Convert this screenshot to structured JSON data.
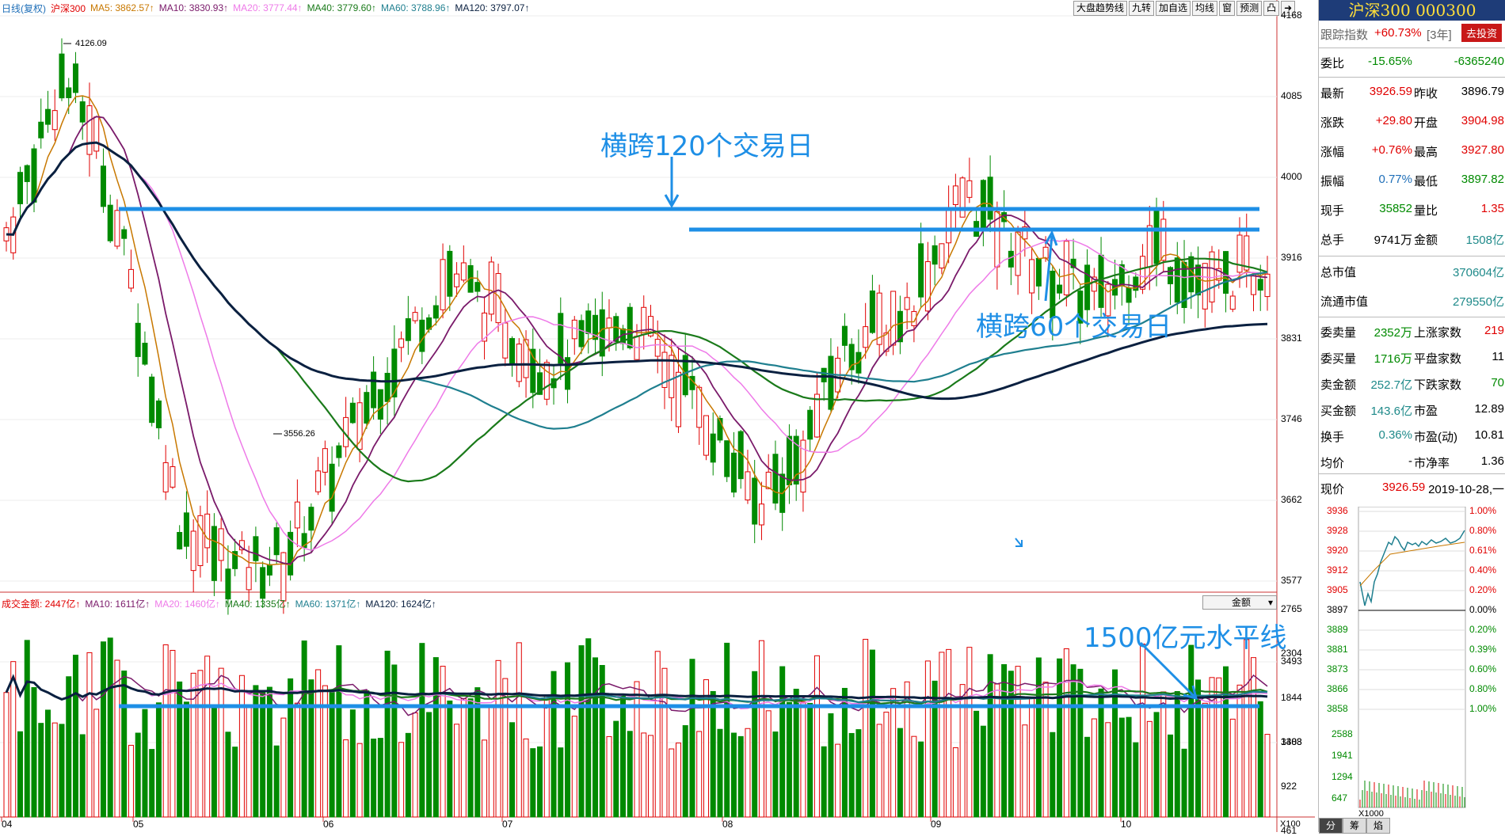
{
  "header": {
    "chart_type": "日线(复权)",
    "index": "沪深300",
    "ma5": "MA5: 3862.57↑",
    "ma10": "MA10: 3830.93↑",
    "ma20": "MA20: 3777.44↑",
    "ma40": "MA40: 3779.60↑",
    "ma60": "MA60: 3788.96↑",
    "ma120": "MA120: 3797.07↑"
  },
  "toolbar": {
    "btn1": "大盘趋势线",
    "btn2": "九转",
    "btn3": "加自选",
    "btn4": "均线",
    "btn5": "窗",
    "btn6": "预测",
    "btn7": "凸"
  },
  "volume_header": {
    "title": "成交金额: 2447亿↑",
    "ma10": "MA10: 1611亿↑",
    "ma20": "MA20: 1460亿↑",
    "ma40": "MA40: 1335亿↑",
    "ma60": "MA60: 1371亿↑",
    "ma120": "MA120: 1624亿↑",
    "selector": "金额"
  },
  "price_axis": [
    "4168",
    "4085",
    "4000",
    "3916",
    "3831",
    "3746",
    "3662",
    "3577",
    "3493",
    "3408"
  ],
  "volume_axis": [
    "2765",
    "2304",
    "1844",
    "1383",
    "922",
    "461"
  ],
  "volume_scale": "X100",
  "months": [
    "04",
    "05",
    "06",
    "07",
    "08",
    "09",
    "10"
  ],
  "extremes": {
    "high": "4126.09",
    "low": "3556.26"
  },
  "annotations": {
    "a1": "横跨120个交易日",
    "a2": "横跨60个交易日",
    "a3": "1500亿元水平线"
  },
  "colors": {
    "up": "#e00000",
    "down": "#008a00",
    "ma5": "#c87800",
    "ma10": "#7a1a6a",
    "ma20": "#ee7ae8",
    "ma40": "#1a7a1a",
    "ma60": "#1f7f8f",
    "ma120": "#0a2040",
    "annotation": "#1e8fe6"
  },
  "panel": {
    "title": "沪深300 000300",
    "track": {
      "label": "跟踪指数",
      "value": "+60.73%",
      "period": "[3年]",
      "button": "去投资"
    },
    "weibi": {
      "label": "委比",
      "v1": "-15.65%",
      "v2": "-6365240"
    },
    "rows": [
      {
        "l1": "最新",
        "v1": "3926.59",
        "l2": "昨收",
        "v2": "3896.79"
      },
      {
        "l1": "涨跌",
        "v1": "+29.80",
        "l2": "开盘",
        "v2": "3904.98"
      },
      {
        "l1": "涨幅",
        "v1": "+0.76%",
        "l2": "最高",
        "v2": "3927.80"
      },
      {
        "l1": "振幅",
        "v1": "0.77%",
        "l2": "最低",
        "v2": "3897.82"
      },
      {
        "l1": "现手",
        "v1": "35852",
        "l2": "量比",
        "v2": "1.35"
      },
      {
        "l1": "总手",
        "v1": "9741万",
        "l2": "金额",
        "v2": "1508亿"
      }
    ],
    "market": [
      {
        "l": "总市值",
        "v": "370604亿"
      },
      {
        "l": "流通市值",
        "v": "279550亿"
      }
    ],
    "stats": [
      {
        "l1": "委卖量",
        "v1": "2352万",
        "l2": "上涨家数",
        "v2": "219"
      },
      {
        "l1": "委买量",
        "v1": "1716万",
        "l2": "平盘家数",
        "v2": "11"
      },
      {
        "l1": "卖金额",
        "v1": "252.7亿",
        "l2": "下跌家数",
        "v2": "70"
      },
      {
        "l1": "买金额",
        "v1": "143.6亿",
        "l2": "市盈",
        "v2": "12.89"
      },
      {
        "l1": "换手",
        "v1": "0.36%",
        "l2": "市盈(动)",
        "v2": "10.81"
      },
      {
        "l1": "均价",
        "v1": "-",
        "l2": "市净率",
        "v2": "1.36"
      }
    ],
    "now": {
      "label": "现价",
      "price": "3926.59",
      "date": "2019-10-28,一"
    },
    "mini_prices": [
      "3936",
      "3928",
      "3920",
      "3912",
      "3905",
      "3897",
      "3889",
      "3881",
      "3873",
      "3866",
      "3858"
    ],
    "mini_pcts": [
      "1.00%",
      "0.80%",
      "0.61%",
      "0.40%",
      "0.20%",
      "0.00%",
      "0.20%",
      "0.39%",
      "0.60%",
      "0.80%",
      "1.00%"
    ],
    "mini_vols": [
      "2588",
      "1941",
      "1294",
      "647"
    ],
    "mini_scale": "X1000",
    "tabs": [
      "分",
      "筹",
      "焰"
    ]
  }
}
